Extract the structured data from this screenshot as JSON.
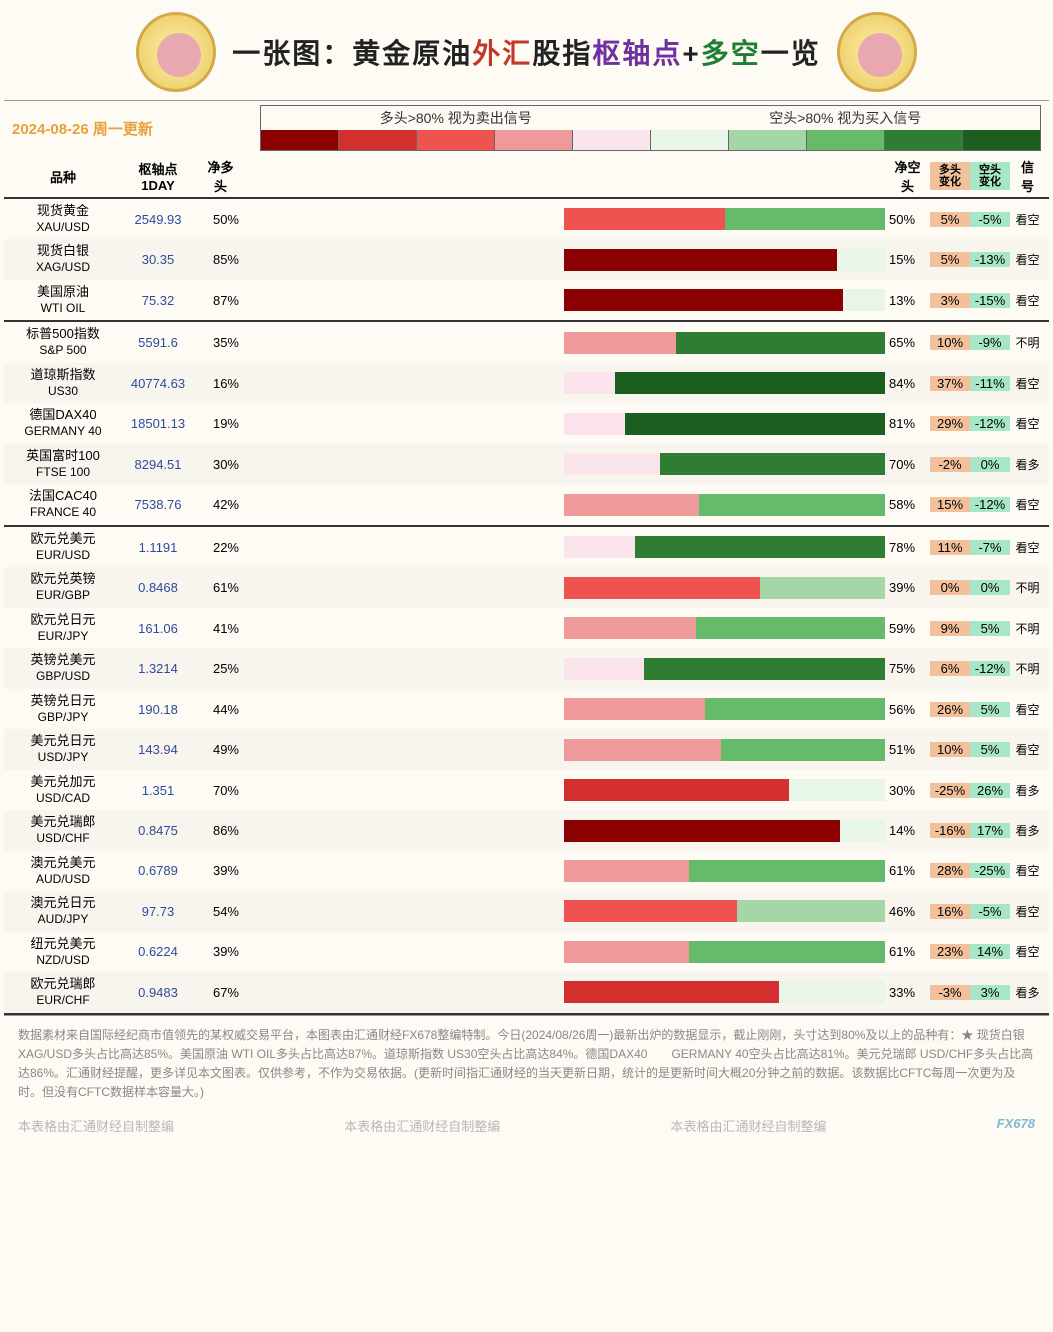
{
  "title_parts": {
    "p1": "一张图：",
    "p2": "黄金原油",
    "p3": "外汇",
    "p4": "股指",
    "p5": "枢轴点",
    "p6": "+",
    "p7": "多空",
    "p8": "一览"
  },
  "date_line": "2024-08-26 周一更新",
  "legend_labels": {
    "long": "多头>80% 视为卖出信号",
    "short": "空头>80% 视为买入信号"
  },
  "legend_colors": [
    "#8b0000",
    "#d32f2f",
    "#ef5350",
    "#ef9a9a",
    "#fce4ec",
    "#e8f5e9",
    "#a5d6a7",
    "#66bb6a",
    "#2e7d32",
    "#1b5e20"
  ],
  "col_headers": {
    "name": "品种",
    "pivot": "枢轴点\n1DAY",
    "netlong": "净多\n头",
    "netshort": "净空\n头",
    "longchg": "多头\n变化",
    "shortchg": "空头\n变化",
    "signal": "信\n号"
  },
  "color_scale": {
    "long": {
      "low": "#fce4ec",
      "mid": "#ef5350",
      "high": "#8b0000"
    },
    "short": {
      "low": "#e8f5e9",
      "mid": "#66bb6a",
      "high": "#1b5e20"
    }
  },
  "chg_colors": {
    "long_bg": "#f2c09a",
    "short_bg": "#a8e6c8"
  },
  "pivot_color": "#2e4a9e",
  "sections": [
    {
      "rows": [
        {
          "cn": "现货黄金",
          "en": "XAU/USD",
          "pivot": "2549.93",
          "long": 50,
          "short": 50,
          "long_chg": "5%",
          "short_chg": "-5%",
          "signal": "看空"
        },
        {
          "cn": "现货白银",
          "en": "XAG/USD",
          "pivot": "30.35",
          "long": 85,
          "short": 15,
          "long_chg": "5%",
          "short_chg": "-13%",
          "signal": "看空"
        },
        {
          "cn": "美国原油",
          "en": "WTI OIL",
          "pivot": "75.32",
          "long": 87,
          "short": 13,
          "long_chg": "3%",
          "short_chg": "-15%",
          "signal": "看空"
        }
      ]
    },
    {
      "rows": [
        {
          "cn": "标普500指数",
          "en": "S&P 500",
          "pivot": "5591.6",
          "long": 35,
          "short": 65,
          "long_chg": "10%",
          "short_chg": "-9%",
          "signal": "不明"
        },
        {
          "cn": "道琼斯指数",
          "en": "US30",
          "pivot": "40774.63",
          "long": 16,
          "short": 84,
          "long_chg": "37%",
          "short_chg": "-11%",
          "signal": "看空"
        },
        {
          "cn": "德国DAX40",
          "en": "GERMANY 40",
          "pivot": "18501.13",
          "long": 19,
          "short": 81,
          "long_chg": "29%",
          "short_chg": "-12%",
          "signal": "看空"
        },
        {
          "cn": "英国富时100",
          "en": "FTSE 100",
          "pivot": "8294.51",
          "long": 30,
          "short": 70,
          "long_chg": "-2%",
          "short_chg": "0%",
          "signal": "看多"
        },
        {
          "cn": "法国CAC40",
          "en": "FRANCE 40",
          "pivot": "7538.76",
          "long": 42,
          "short": 58,
          "long_chg": "15%",
          "short_chg": "-12%",
          "signal": "看空"
        }
      ]
    },
    {
      "rows": [
        {
          "cn": "欧元兑美元",
          "en": "EUR/USD",
          "pivot": "1.1191",
          "long": 22,
          "short": 78,
          "long_chg": "11%",
          "short_chg": "-7%",
          "signal": "看空"
        },
        {
          "cn": "欧元兑英镑",
          "en": "EUR/GBP",
          "pivot": "0.8468",
          "long": 61,
          "short": 39,
          "long_chg": "0%",
          "short_chg": "0%",
          "signal": "不明"
        },
        {
          "cn": "欧元兑日元",
          "en": "EUR/JPY",
          "pivot": "161.06",
          "long": 41,
          "short": 59,
          "long_chg": "9%",
          "short_chg": "5%",
          "signal": "不明"
        },
        {
          "cn": "英镑兑美元",
          "en": "GBP/USD",
          "pivot": "1.3214",
          "long": 25,
          "short": 75,
          "long_chg": "6%",
          "short_chg": "-12%",
          "signal": "不明"
        },
        {
          "cn": "英镑兑日元",
          "en": "GBP/JPY",
          "pivot": "190.18",
          "long": 44,
          "short": 56,
          "long_chg": "26%",
          "short_chg": "5%",
          "signal": "看空"
        },
        {
          "cn": "美元兑日元",
          "en": "USD/JPY",
          "pivot": "143.94",
          "long": 49,
          "short": 51,
          "long_chg": "10%",
          "short_chg": "5%",
          "signal": "看空"
        },
        {
          "cn": "美元兑加元",
          "en": "USD/CAD",
          "pivot": "1.351",
          "long": 70,
          "short": 30,
          "long_chg": "-25%",
          "short_chg": "26%",
          "signal": "看多"
        },
        {
          "cn": "美元兑瑞郎",
          "en": "USD/CHF",
          "pivot": "0.8475",
          "long": 86,
          "short": 14,
          "long_chg": "-16%",
          "short_chg": "17%",
          "signal": "看多"
        },
        {
          "cn": "澳元兑美元",
          "en": "AUD/USD",
          "pivot": "0.6789",
          "long": 39,
          "short": 61,
          "long_chg": "28%",
          "short_chg": "-25%",
          "signal": "看空"
        },
        {
          "cn": "澳元兑日元",
          "en": "AUD/JPY",
          "pivot": "97.73",
          "long": 54,
          "short": 46,
          "long_chg": "16%",
          "short_chg": "-5%",
          "signal": "看空"
        },
        {
          "cn": "纽元兑美元",
          "en": "NZD/USD",
          "pivot": "0.6224",
          "long": 39,
          "short": 61,
          "long_chg": "23%",
          "short_chg": "14%",
          "signal": "看空"
        },
        {
          "cn": "欧元兑瑞郎",
          "en": "EUR/CHF",
          "pivot": "0.9483",
          "long": 67,
          "short": 33,
          "long_chg": "-3%",
          "short_chg": "3%",
          "signal": "看多"
        }
      ]
    }
  ],
  "footer_text": "数据素材来自国际经纪商市值领先的某权威交易平台，本图表由汇通财经FX678整编特制。今日(2024/08/26周一)最新出炉的数据显示，截止刚刚，头寸达到80%及以上的品种有：★ 现货白银 XAG/USD多头占比高达85%。美国原油 WTI OIL多头占比高达87%。道琼斯指数 US30空头占比高达84%。德国DAX40　　GERMANY 40空头占比高达81%。美元兑瑞郎 USD/CHF多头占比高达86%。汇通财经提醒，更多详见本文图表。仅供参考，不作为交易依据。(更新时间指汇通财经的当天更新日期，统计的是更新时间大概20分钟之前的数据。该数据比CFTC每周一次更为及时。但没有CFTC数据样本容量大。)",
  "watermark": "本表格由汇通财经自制整编",
  "watermark_brand": "FX678"
}
